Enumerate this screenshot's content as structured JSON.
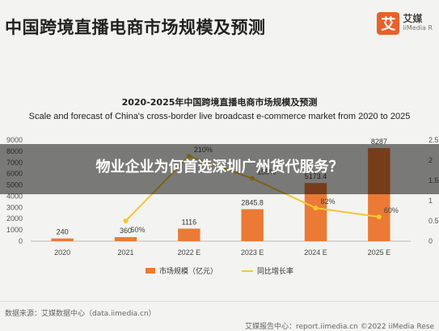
{
  "header": {
    "title": "中国跨境直播电商市场规模及预测",
    "logo_mark": "艾",
    "logo_cn": "艾媒",
    "logo_en": "iiMedia R"
  },
  "overlay": {
    "title": "物业企业为何首选深圳广州货代服务？"
  },
  "footer": {
    "source_left": "数据来源：艾媒数据中心（data.iimedia.cn）",
    "source_right": "艾媒报告中心：report.iimedia.cn        ©2022  iiMedia Rese"
  },
  "chart_data": {
    "type": "bar",
    "title": "2020-2025年中国跨境直播电商市场规模及预测",
    "subtitle": "Scale and forecast of China's cross-border live broadcast e-commerce market from 2020 to 2025",
    "categories": [
      "2020",
      "2021",
      "2022 E",
      "2023 E",
      "2024 E",
      "2025 E"
    ],
    "series": [
      {
        "name": "市场规模（亿元）",
        "type": "bar",
        "color": "#ea7a35",
        "values": [
          240,
          360,
          1116,
          2845.8,
          5173.4,
          8287
        ],
        "labels": [
          "240",
          "360",
          "1116",
          "2845.8",
          "5173.4",
          "8287"
        ]
      },
      {
        "name": "同比增长率",
        "type": "line",
        "color": "#f3c633",
        "values": [
          null,
          50,
          210,
          155,
          82,
          60
        ],
        "labels": [
          "",
          "50%",
          "210%",
          "155%",
          "82%",
          "60%"
        ]
      }
    ],
    "y_ticks": [
      "0",
      "1000",
      "2000",
      "3000",
      "4000",
      "5000",
      "6000",
      "7000",
      "8000",
      "9000"
    ],
    "ylim": [
      0,
      9000
    ],
    "growth_right_ticks": [
      "0",
      "0.5",
      "1",
      "1.5",
      "2",
      "2.5"
    ],
    "growth_right_range": [
      0,
      250
    ],
    "grid": false,
    "legend_position": "bottom"
  }
}
